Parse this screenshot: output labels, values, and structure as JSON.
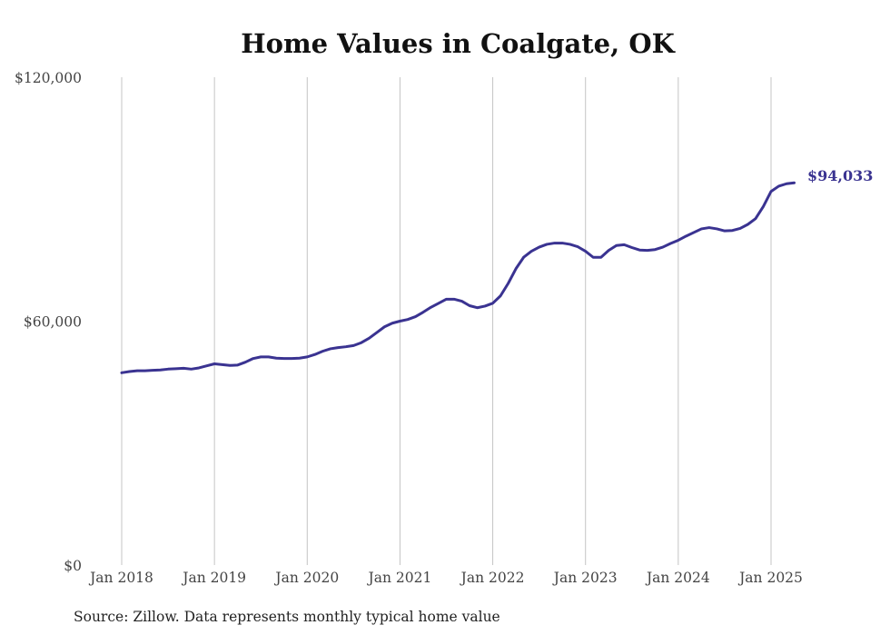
{
  "chart_data": {
    "type": "line",
    "title": "Home Values in Coalgate, OK",
    "source": "Source: Zillow. Data represents monthly typical home value",
    "ylim": [
      0,
      120000
    ],
    "y_ticks": [
      {
        "value": 0,
        "label": "$0"
      },
      {
        "value": 60000,
        "label": "$60,000"
      },
      {
        "value": 120000,
        "label": "$120,000"
      }
    ],
    "x_ticks": [
      {
        "value": 2018.0,
        "label": "Jan 2018"
      },
      {
        "value": 2019.0,
        "label": "Jan 2019"
      },
      {
        "value": 2020.0,
        "label": "Jan 2020"
      },
      {
        "value": 2021.0,
        "label": "Jan 2021"
      },
      {
        "value": 2022.0,
        "label": "Jan 2022"
      },
      {
        "value": 2023.0,
        "label": "Jan 2023"
      },
      {
        "value": 2024.0,
        "label": "Jan 2024"
      },
      {
        "value": 2025.0,
        "label": "Jan 2025"
      }
    ],
    "grid": "vertical",
    "color": "#3a3391",
    "end_label": "$94,033",
    "series": [
      {
        "x": [
          2018.0,
          2018.083,
          2018.167,
          2018.25,
          2018.333,
          2018.417,
          2018.5,
          2018.583,
          2018.667,
          2018.75,
          2018.833,
          2018.917,
          2019.0,
          2019.083,
          2019.167,
          2019.25,
          2019.333,
          2019.417,
          2019.5,
          2019.583,
          2019.667,
          2019.75,
          2019.833,
          2019.917,
          2020.0,
          2020.083,
          2020.167,
          2020.25,
          2020.333,
          2020.417,
          2020.5,
          2020.583,
          2020.667,
          2020.75,
          2020.833,
          2020.917,
          2021.0,
          2021.083,
          2021.167,
          2021.25,
          2021.333,
          2021.417,
          2021.5,
          2021.583,
          2021.667,
          2021.75,
          2021.833,
          2021.917,
          2022.0,
          2022.083,
          2022.167,
          2022.25,
          2022.333,
          2022.417,
          2022.5,
          2022.583,
          2022.667,
          2022.75,
          2022.833,
          2022.917,
          2023.0,
          2023.083,
          2023.167,
          2023.25,
          2023.333,
          2023.417,
          2023.5,
          2023.583,
          2023.667,
          2023.75,
          2023.833,
          2023.917,
          2024.0,
          2024.083,
          2024.167,
          2024.25,
          2024.333,
          2024.417,
          2024.5,
          2024.583,
          2024.667,
          2024.75,
          2024.833,
          2024.917,
          2025.0,
          2025.083,
          2025.167,
          2025.25
        ],
        "values": [
          47300,
          47600,
          47800,
          47800,
          47900,
          48000,
          48200,
          48300,
          48400,
          48200,
          48500,
          49000,
          49500,
          49300,
          49100,
          49200,
          49900,
          50800,
          51200,
          51200,
          50900,
          50800,
          50800,
          50900,
          51200,
          51800,
          52600,
          53200,
          53500,
          53700,
          54000,
          54700,
          55800,
          57200,
          58600,
          59500,
          60000,
          60400,
          61100,
          62200,
          63400,
          64400,
          65400,
          65400,
          64900,
          63800,
          63300,
          63700,
          64400,
          66200,
          69300,
          72900,
          75700,
          77200,
          78200,
          78900,
          79200,
          79200,
          78900,
          78300,
          77200,
          75700,
          75700,
          77400,
          78600,
          78800,
          78100,
          77500,
          77400,
          77600,
          78200,
          79100,
          79900,
          80900,
          81800,
          82700,
          83000,
          82700,
          82200,
          82300,
          82800,
          83800,
          85200,
          88200,
          91900,
          93200,
          93800,
          94033
        ]
      }
    ]
  }
}
